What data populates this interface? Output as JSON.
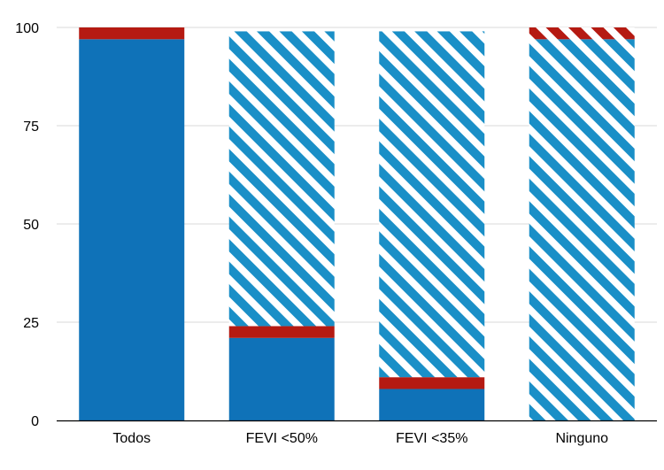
{
  "chart_data": {
    "type": "bar",
    "stacked": true,
    "title": "",
    "xlabel": "",
    "ylabel": "",
    "ylim": [
      0,
      100
    ],
    "yticks": [
      "0",
      "25",
      "50",
      "75",
      "100"
    ],
    "grid": true,
    "legend": "none",
    "categories": [
      "Todos",
      "FEVI <50%",
      "FEVI <35%",
      "Ninguno"
    ],
    "series": [
      {
        "color": "#0f72b8",
        "pattern": "solid",
        "values": [
          97,
          21,
          8,
          0
        ]
      },
      {
        "color": "#b51a12",
        "pattern": "solid",
        "values": [
          3,
          3,
          3,
          0
        ]
      },
      {
        "color": "#1a8fc7",
        "pattern": "hatched",
        "values": [
          0,
          75,
          88,
          97
        ]
      },
      {
        "color": "#b51a12",
        "pattern": "hatched",
        "values": [
          0,
          0,
          0,
          3
        ]
      }
    ]
  }
}
